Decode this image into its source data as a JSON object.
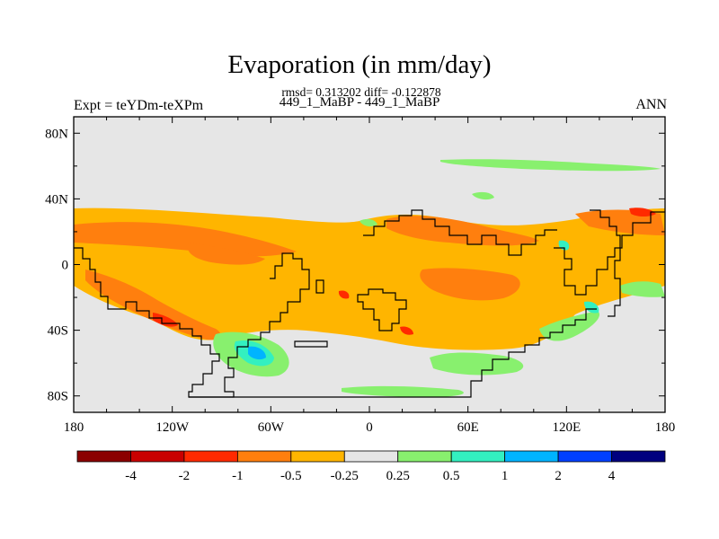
{
  "chart_data": {
    "type": "heatmap",
    "title": "Evaporation (in mm/day)",
    "stats_text": "rmsd= 0.313202 diff= -0.122878",
    "subtitle": "449_1_MaBP - 449_1_MaBP",
    "left_label": "Expt = teYDm-teXPm",
    "right_label": "ANN",
    "x_ticks": [
      "180",
      "120W",
      "60W",
      "0",
      "60E",
      "120E",
      "180"
    ],
    "x_tick_values": [
      -180,
      -120,
      -60,
      0,
      60,
      120,
      180
    ],
    "y_ticks": [
      "80N",
      "40N",
      "0",
      "40S",
      "80S"
    ],
    "y_tick_values": [
      80,
      40,
      0,
      -40,
      -80
    ],
    "lon_range": [
      -180,
      180
    ],
    "lat_range": [
      -90,
      90
    ],
    "colorbar_labels": [
      "-4",
      "-2",
      "-1",
      "-0.5",
      "-0.25",
      "0.25",
      "0.5",
      "1",
      "2",
      "4"
    ],
    "colorbar_colors": [
      "#8b0000",
      "#c90000",
      "#ff2a00",
      "#ff7f0e",
      "#ffb500",
      "#e6e6e6",
      "#88f06e",
      "#33f0c0",
      "#00b4ff",
      "#0040ff",
      "#00007f"
    ]
  },
  "colors": {
    "background": "#e6e6e6",
    "frame": "#000000"
  }
}
